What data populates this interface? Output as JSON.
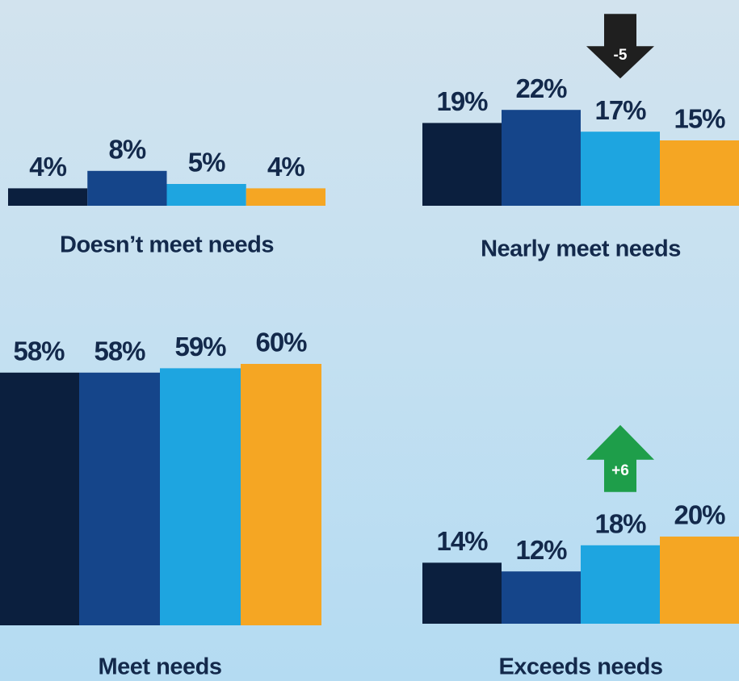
{
  "chart_data": [
    {
      "type": "bar",
      "title": "Doesn’t meet needs",
      "categories": [
        null,
        null,
        null,
        null
      ],
      "values": [
        4,
        8,
        5,
        4
      ],
      "value_labels": [
        "4%",
        "8%",
        "5%",
        "4%"
      ],
      "colors": [
        "#0b1f3e",
        "#15458a",
        "#1ea5e0",
        "#f5a623"
      ],
      "changes": [
        null,
        null,
        null,
        null
      ]
    },
    {
      "type": "bar",
      "title": "Nearly meet needs",
      "categories": [
        null,
        null,
        null,
        null
      ],
      "values": [
        19,
        22,
        17,
        15
      ],
      "value_labels": [
        "19%",
        "22%",
        "17%",
        "15%"
      ],
      "colors": [
        "#0b1f3e",
        "#15458a",
        "#1ea5e0",
        "#f5a623"
      ],
      "changes": [
        null,
        null,
        -5,
        null
      ],
      "change_colors": {
        "down": "#1f1f1f",
        "up": "#1e9e4a"
      }
    },
    {
      "type": "bar",
      "title": "Meet needs",
      "categories": [
        null,
        null,
        null,
        null
      ],
      "values": [
        58,
        58,
        59,
        60
      ],
      "value_labels": [
        "58%",
        "58%",
        "59%",
        "60%"
      ],
      "colors": [
        "#0b1f3e",
        "#15458a",
        "#1ea5e0",
        "#f5a623"
      ],
      "changes": [
        null,
        null,
        null,
        null
      ]
    },
    {
      "type": "bar",
      "title": "Exceeds needs",
      "categories": [
        null,
        null,
        null,
        null
      ],
      "values": [
        14,
        12,
        18,
        20
      ],
      "value_labels": [
        "14%",
        "12%",
        "18%",
        "20%"
      ],
      "colors": [
        "#0b1f3e",
        "#15458a",
        "#1ea5e0",
        "#f5a623"
      ],
      "changes": [
        null,
        null,
        {
          "value": 6,
          "label": "+6"
        },
        null
      ],
      "change_colors": {
        "down": "#1f1f1f",
        "up": "#1e9e4a"
      }
    }
  ]
}
